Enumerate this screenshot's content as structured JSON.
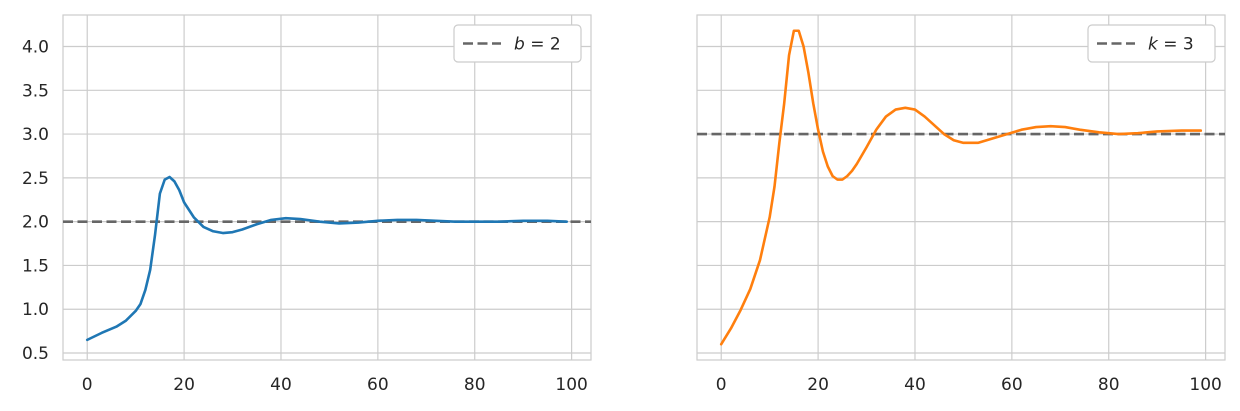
{
  "chart_data": [
    {
      "type": "line",
      "title": "",
      "xlabel": "",
      "ylabel": "",
      "xlim": [
        -5,
        104
      ],
      "ylim": [
        0.42,
        4.36
      ],
      "x_ticks": [
        0,
        20,
        40,
        60,
        80,
        100
      ],
      "y_ticks": [
        0.5,
        1.0,
        1.5,
        2.0,
        2.5,
        3.0,
        3.5,
        4.0
      ],
      "x_tick_labels": [
        "0",
        "20",
        "40",
        "60",
        "80",
        "100"
      ],
      "y_tick_labels": [
        "0.5",
        "1.0",
        "1.5",
        "2.0",
        "2.5",
        "3.0",
        "3.5",
        "4.0"
      ],
      "grid": true,
      "legend_position": "top-right",
      "series": [
        {
          "color": "#1f77b4",
          "x": [
            0,
            3,
            6,
            8,
            10,
            11,
            12,
            13,
            14,
            15,
            16,
            17,
            18,
            19,
            20,
            22,
            24,
            26,
            28,
            30,
            32,
            35,
            38,
            41,
            44,
            48,
            52,
            56,
            60,
            64,
            68,
            72,
            76,
            80,
            85,
            90,
            95,
            99
          ],
          "values": [
            0.65,
            0.73,
            0.8,
            0.87,
            0.98,
            1.06,
            1.22,
            1.45,
            1.85,
            2.32,
            2.48,
            2.51,
            2.46,
            2.36,
            2.22,
            2.05,
            1.94,
            1.89,
            1.87,
            1.88,
            1.91,
            1.97,
            2.02,
            2.04,
            2.03,
            2.0,
            1.98,
            1.99,
            2.01,
            2.02,
            2.02,
            2.01,
            2.0,
            2.0,
            2.0,
            2.01,
            2.01,
            2.0
          ]
        }
      ],
      "reference_lines": [
        {
          "y": 2,
          "label": "b = 2",
          "label_var": "b",
          "label_op": " = ",
          "label_val": "2",
          "style": "dashed",
          "color": "#666666"
        }
      ]
    },
    {
      "type": "line",
      "title": "",
      "xlabel": "",
      "ylabel": "",
      "xlim": [
        -5,
        104
      ],
      "ylim": [
        0.42,
        4.36
      ],
      "x_ticks": [
        0,
        20,
        40,
        60,
        80,
        100
      ],
      "x_tick_labels": [
        "0",
        "20",
        "40",
        "60",
        "80",
        "100"
      ],
      "y_ticks": [
        0.5,
        1.0,
        1.5,
        2.0,
        2.5,
        3.0,
        3.5,
        4.0
      ],
      "grid": true,
      "legend_position": "top-right",
      "series": [
        {
          "color": "#ff7f0e",
          "x": [
            0,
            2,
            4,
            6,
            8,
            10,
            11,
            12,
            13,
            14,
            15,
            16,
            17,
            18,
            19,
            20,
            21,
            22,
            23,
            24,
            25,
            26,
            27,
            28,
            30,
            32,
            34,
            36,
            38,
            40,
            42,
            44,
            46,
            48,
            50,
            53,
            56,
            59,
            62,
            65,
            68,
            71,
            74,
            78,
            82,
            86,
            90,
            95,
            99
          ],
          "values": [
            0.6,
            0.78,
            0.99,
            1.23,
            1.56,
            2.05,
            2.4,
            2.9,
            3.35,
            3.9,
            4.18,
            4.18,
            4.0,
            3.7,
            3.35,
            3.05,
            2.8,
            2.63,
            2.52,
            2.48,
            2.48,
            2.52,
            2.58,
            2.66,
            2.85,
            3.05,
            3.2,
            3.28,
            3.3,
            3.28,
            3.2,
            3.1,
            3.0,
            2.93,
            2.9,
            2.9,
            2.95,
            3.0,
            3.05,
            3.08,
            3.09,
            3.08,
            3.05,
            3.02,
            3.0,
            3.01,
            3.03,
            3.04,
            3.04
          ]
        }
      ],
      "reference_lines": [
        {
          "y": 3,
          "label": "k = 3",
          "label_var": "k",
          "label_op": " = ",
          "label_val": "3",
          "style": "dashed",
          "color": "#666666"
        }
      ]
    }
  ]
}
